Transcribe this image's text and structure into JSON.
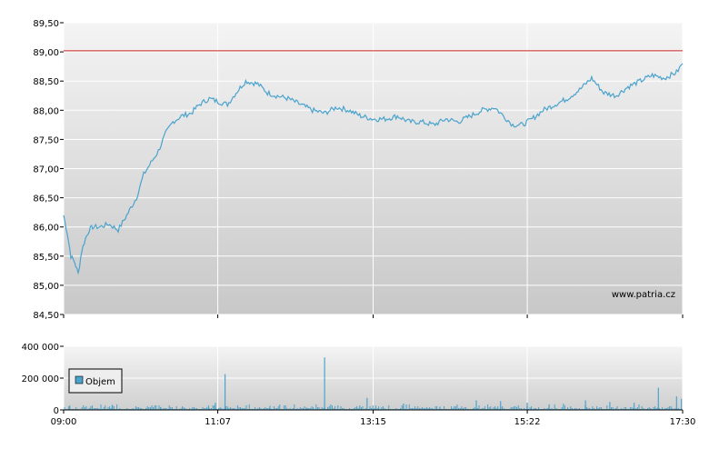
{
  "chart_data": [
    {
      "type": "line",
      "yticks": [
        "89,50",
        "89,00",
        "88,50",
        "88,00",
        "87,50",
        "87,00",
        "86,50",
        "86,00",
        "85,50",
        "85,00",
        "84,50"
      ],
      "ylim": [
        84.5,
        89.5
      ],
      "xticks": [
        "09:00",
        "11:07",
        "13:15",
        "15:22",
        "17:30"
      ],
      "reference_line": 89.02,
      "watermark": "www.patria.cz",
      "grid": true,
      "series": [
        {
          "color": "#4aa3cc",
          "x": [
            "09:00",
            "09:03",
            "09:06",
            "09:09",
            "09:12",
            "09:15",
            "09:18",
            "09:21",
            "09:24",
            "09:30",
            "09:37",
            "09:45",
            "09:52",
            "10:00",
            "10:06",
            "10:12",
            "10:18",
            "10:24",
            "10:30",
            "10:37",
            "10:45",
            "10:52",
            "11:00",
            "11:07",
            "11:15",
            "11:22",
            "11:30",
            "11:40",
            "11:48",
            "11:55",
            "12:05",
            "12:15",
            "12:25",
            "12:35",
            "12:45",
            "12:55",
            "13:05",
            "13:15",
            "13:25",
            "13:35",
            "13:45",
            "13:55",
            "14:05",
            "14:15",
            "14:25",
            "14:35",
            "14:45",
            "14:55",
            "15:00",
            "15:05",
            "15:10",
            "15:18",
            "15:26",
            "15:35",
            "15:45",
            "15:55",
            "16:05",
            "16:15",
            "16:25",
            "16:35",
            "16:45",
            "16:55",
            "17:05",
            "17:15",
            "17:25",
            "17:30"
          ],
          "values": [
            86.2,
            85.9,
            85.5,
            85.4,
            85.2,
            85.6,
            85.8,
            85.95,
            86.0,
            86.0,
            86.05,
            85.95,
            86.2,
            86.5,
            86.9,
            87.1,
            87.3,
            87.6,
            87.8,
            87.9,
            87.95,
            88.1,
            88.2,
            88.15,
            88.1,
            88.3,
            88.5,
            88.45,
            88.3,
            88.25,
            88.2,
            88.1,
            88.0,
            87.95,
            88.05,
            88.0,
            87.9,
            87.85,
            87.85,
            87.9,
            87.8,
            87.8,
            87.75,
            87.85,
            87.8,
            87.9,
            88.0,
            88.05,
            87.95,
            87.85,
            87.75,
            87.75,
            87.85,
            88.0,
            88.1,
            88.2,
            88.35,
            88.55,
            88.3,
            88.25,
            88.4,
            88.5,
            88.6,
            88.55,
            88.65,
            88.8
          ]
        }
      ]
    },
    {
      "type": "bar",
      "yticks": [
        "400 000",
        "200 000",
        "0"
      ],
      "ylim": [
        0,
        400000
      ],
      "xticks": [
        "09:00",
        "11:07",
        "13:15",
        "15:22",
        "17:30"
      ],
      "legend": {
        "label": "Objem",
        "placement": "left",
        "color": "#4aa3cc"
      },
      "series": [
        {
          "name": "Objem",
          "x": [
            "09:05",
            "09:40",
            "10:20",
            "11:00",
            "11:05",
            "11:13",
            "11:50",
            "12:20",
            "12:35",
            "13:10",
            "13:40",
            "14:10",
            "14:40",
            "15:00",
            "15:22",
            "15:40",
            "16:10",
            "16:30",
            "16:50",
            "17:10",
            "17:25",
            "17:29"
          ],
          "values": [
            28000,
            32000,
            18000,
            12000,
            45000,
            225000,
            25000,
            15000,
            330000,
            75000,
            40000,
            20000,
            60000,
            55000,
            45000,
            35000,
            60000,
            50000,
            45000,
            140000,
            85000,
            70000
          ]
        }
      ]
    }
  ]
}
